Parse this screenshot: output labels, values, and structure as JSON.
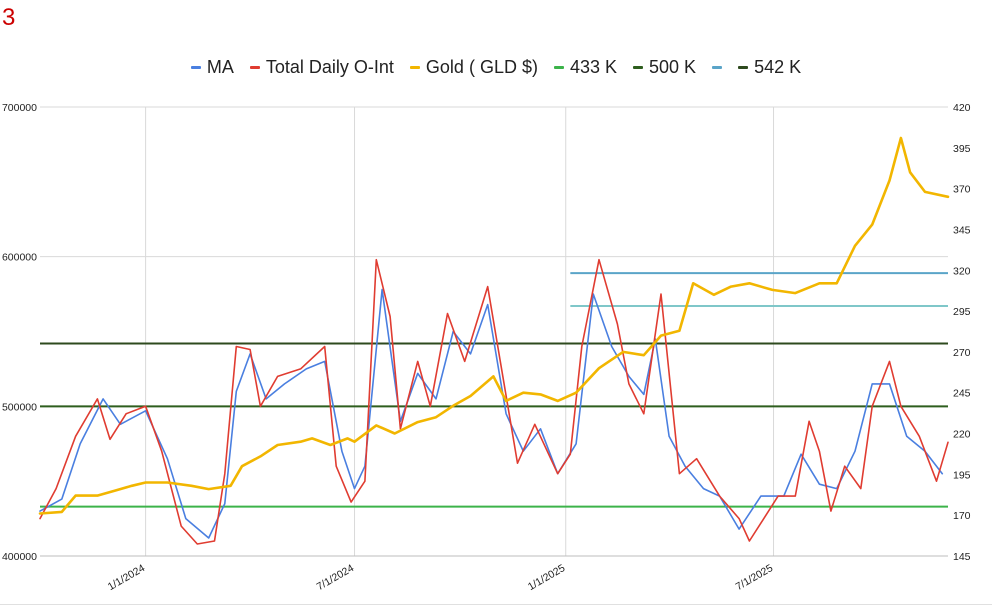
{
  "page_label": "3",
  "chart_data": {
    "type": "line",
    "title": "",
    "legend_position": "top",
    "grid": true,
    "x_ticks": [
      "1/1/2024",
      "7/1/2024",
      "1/1/2025",
      "7/1/2025"
    ],
    "x_range": [
      "2023-10-01",
      "2025-11-30"
    ],
    "y_left": {
      "range": [
        400000,
        700000
      ],
      "ticks": [
        400000,
        500000,
        600000,
        700000
      ]
    },
    "y_right": {
      "range": [
        145,
        420
      ],
      "ticks": [
        145,
        170,
        195,
        220,
        245,
        270,
        295,
        320,
        345,
        370,
        395,
        420
      ]
    },
    "series": [
      {
        "name": "MA",
        "color": "#4a7fe0",
        "axis": "left",
        "points": [
          [
            "2023-10-01",
            430000
          ],
          [
            "2023-10-20",
            438000
          ],
          [
            "2023-11-05",
            475000
          ],
          [
            "2023-11-25",
            505000
          ],
          [
            "2023-12-10",
            488000
          ],
          [
            "2024-01-01",
            497000
          ],
          [
            "2024-01-20",
            465000
          ],
          [
            "2024-02-05",
            425000
          ],
          [
            "2024-02-25",
            412000
          ],
          [
            "2024-03-10",
            435000
          ],
          [
            "2024-03-20",
            510000
          ],
          [
            "2024-04-01",
            535000
          ],
          [
            "2024-04-15",
            505000
          ],
          [
            "2024-05-01",
            515000
          ],
          [
            "2024-05-20",
            525000
          ],
          [
            "2024-06-05",
            530000
          ],
          [
            "2024-06-20",
            470000
          ],
          [
            "2024-07-01",
            445000
          ],
          [
            "2024-07-10",
            460000
          ],
          [
            "2024-07-25",
            578000
          ],
          [
            "2024-08-10",
            490000
          ],
          [
            "2024-08-25",
            522000
          ],
          [
            "2024-09-10",
            505000
          ],
          [
            "2024-09-25",
            550000
          ],
          [
            "2024-10-10",
            535000
          ],
          [
            "2024-10-25",
            568000
          ],
          [
            "2024-11-10",
            495000
          ],
          [
            "2024-11-25",
            470000
          ],
          [
            "2024-12-10",
            485000
          ],
          [
            "2024-12-25",
            455000
          ],
          [
            "2025-01-10",
            475000
          ],
          [
            "2025-01-25",
            575000
          ],
          [
            "2025-02-10",
            540000
          ],
          [
            "2025-02-25",
            520000
          ],
          [
            "2025-03-10",
            508000
          ],
          [
            "2025-03-20",
            545000
          ],
          [
            "2025-04-01",
            480000
          ],
          [
            "2025-04-15",
            460000
          ],
          [
            "2025-05-01",
            445000
          ],
          [
            "2025-05-15",
            440000
          ],
          [
            "2025-06-01",
            418000
          ],
          [
            "2025-06-20",
            440000
          ],
          [
            "2025-07-10",
            440000
          ],
          [
            "2025-07-25",
            468000
          ],
          [
            "2025-08-10",
            448000
          ],
          [
            "2025-08-25",
            445000
          ],
          [
            "2025-09-10",
            470000
          ],
          [
            "2025-09-25",
            515000
          ],
          [
            "2025-10-10",
            515000
          ],
          [
            "2025-10-25",
            480000
          ],
          [
            "2025-11-10",
            470000
          ],
          [
            "2025-11-25",
            455000
          ]
        ]
      },
      {
        "name": "Total Daily O-Int",
        "color": "#e03c31",
        "axis": "left",
        "points": [
          [
            "2023-10-01",
            425000
          ],
          [
            "2023-10-15",
            445000
          ],
          [
            "2023-11-01",
            480000
          ],
          [
            "2023-11-20",
            505000
          ],
          [
            "2023-12-01",
            478000
          ],
          [
            "2023-12-15",
            495000
          ],
          [
            "2024-01-01",
            500000
          ],
          [
            "2024-01-15",
            470000
          ],
          [
            "2024-02-01",
            420000
          ],
          [
            "2024-02-15",
            408000
          ],
          [
            "2024-03-01",
            410000
          ],
          [
            "2024-03-10",
            455000
          ],
          [
            "2024-03-20",
            540000
          ],
          [
            "2024-04-01",
            538000
          ],
          [
            "2024-04-10",
            500000
          ],
          [
            "2024-04-25",
            520000
          ],
          [
            "2024-05-15",
            525000
          ],
          [
            "2024-06-05",
            540000
          ],
          [
            "2024-06-15",
            460000
          ],
          [
            "2024-06-28",
            436000
          ],
          [
            "2024-07-10",
            450000
          ],
          [
            "2024-07-20",
            598000
          ],
          [
            "2024-08-01",
            560000
          ],
          [
            "2024-08-10",
            485000
          ],
          [
            "2024-08-25",
            530000
          ],
          [
            "2024-09-05",
            500000
          ],
          [
            "2024-09-20",
            562000
          ],
          [
            "2024-10-05",
            530000
          ],
          [
            "2024-10-25",
            580000
          ],
          [
            "2024-11-05",
            530000
          ],
          [
            "2024-11-20",
            462000
          ],
          [
            "2024-12-05",
            488000
          ],
          [
            "2024-12-25",
            455000
          ],
          [
            "2025-01-05",
            468000
          ],
          [
            "2025-01-15",
            540000
          ],
          [
            "2025-01-30",
            598000
          ],
          [
            "2025-02-15",
            555000
          ],
          [
            "2025-02-25",
            515000
          ],
          [
            "2025-03-10",
            495000
          ],
          [
            "2025-03-25",
            575000
          ],
          [
            "2025-04-10",
            455000
          ],
          [
            "2025-04-25",
            465000
          ],
          [
            "2025-05-15",
            440000
          ],
          [
            "2025-06-01",
            425000
          ],
          [
            "2025-06-10",
            410000
          ],
          [
            "2025-06-20",
            422000
          ],
          [
            "2025-07-05",
            440000
          ],
          [
            "2025-07-20",
            440000
          ],
          [
            "2025-08-01",
            490000
          ],
          [
            "2025-08-10",
            470000
          ],
          [
            "2025-08-20",
            430000
          ],
          [
            "2025-09-01",
            460000
          ],
          [
            "2025-09-15",
            445000
          ],
          [
            "2025-09-25",
            500000
          ],
          [
            "2025-10-10",
            530000
          ],
          [
            "2025-10-20",
            500000
          ],
          [
            "2025-11-05",
            480000
          ],
          [
            "2025-11-20",
            450000
          ],
          [
            "2025-11-30",
            476000
          ]
        ]
      },
      {
        "name": "Gold ( GLD $)",
        "color": "#f2b600",
        "axis": "right",
        "points": [
          [
            "2023-10-01",
            171
          ],
          [
            "2023-10-20",
            172
          ],
          [
            "2023-11-01",
            182
          ],
          [
            "2023-11-20",
            182
          ],
          [
            "2023-12-05",
            185
          ],
          [
            "2023-12-20",
            188
          ],
          [
            "2024-01-01",
            190
          ],
          [
            "2024-01-20",
            190
          ],
          [
            "2024-02-10",
            188
          ],
          [
            "2024-02-25",
            186
          ],
          [
            "2024-03-15",
            188
          ],
          [
            "2024-03-25",
            200
          ],
          [
            "2024-04-10",
            206
          ],
          [
            "2024-04-25",
            213
          ],
          [
            "2024-05-15",
            215
          ],
          [
            "2024-05-25",
            217
          ],
          [
            "2024-06-10",
            213
          ],
          [
            "2024-06-25",
            217
          ],
          [
            "2024-07-01",
            215
          ],
          [
            "2024-07-20",
            225
          ],
          [
            "2024-08-05",
            220
          ],
          [
            "2024-08-25",
            227
          ],
          [
            "2024-09-10",
            230
          ],
          [
            "2024-09-25",
            237
          ],
          [
            "2024-10-10",
            243
          ],
          [
            "2024-10-30",
            255
          ],
          [
            "2024-11-10",
            240
          ],
          [
            "2024-11-25",
            245
          ],
          [
            "2024-12-10",
            244
          ],
          [
            "2024-12-25",
            240
          ],
          [
            "2025-01-10",
            245
          ],
          [
            "2025-01-30",
            260
          ],
          [
            "2025-02-20",
            270
          ],
          [
            "2025-03-10",
            268
          ],
          [
            "2025-03-25",
            280
          ],
          [
            "2025-04-10",
            283
          ],
          [
            "2025-04-22",
            312
          ],
          [
            "2025-05-10",
            305
          ],
          [
            "2025-05-25",
            310
          ],
          [
            "2025-06-10",
            312
          ],
          [
            "2025-06-30",
            308
          ],
          [
            "2025-07-20",
            306
          ],
          [
            "2025-08-10",
            312
          ],
          [
            "2025-08-25",
            312
          ],
          [
            "2025-09-10",
            335
          ],
          [
            "2025-09-25",
            348
          ],
          [
            "2025-10-10",
            375
          ],
          [
            "2025-10-20",
            401
          ],
          [
            "2025-10-28",
            380
          ],
          [
            "2025-11-10",
            368
          ],
          [
            "2025-11-30",
            365
          ]
        ]
      },
      {
        "name": "433 K",
        "color": "#3cb34a",
        "axis": "left",
        "constant": 433000
      },
      {
        "name": "500 K",
        "color": "#2e5e1e",
        "axis": "left",
        "constant": 500000
      },
      {
        "name": "",
        "color": "#7fc7c9",
        "axis": "left",
        "constant": 567000,
        "x_start": "2025-01-05"
      },
      {
        "name": "",
        "color": "#5aa4c8",
        "axis": "left",
        "constant": 589000,
        "x_start": "2025-01-05"
      },
      {
        "name": "542 K",
        "color": "#2e4a1e",
        "axis": "left",
        "constant": 542000
      }
    ],
    "legend": [
      {
        "label": "MA",
        "color": "#4a7fe0"
      },
      {
        "label": "Total Daily O-Int",
        "color": "#e03c31"
      },
      {
        "label": "Gold ( GLD $)",
        "color": "#f2b600"
      },
      {
        "label": "433 K",
        "color": "#3cb34a"
      },
      {
        "label": "500 K",
        "color": "#2e5e1e"
      },
      {
        "label": "",
        "color": "#5aa4c8"
      },
      {
        "label": "542 K",
        "color": "#2e4a1e"
      }
    ]
  }
}
